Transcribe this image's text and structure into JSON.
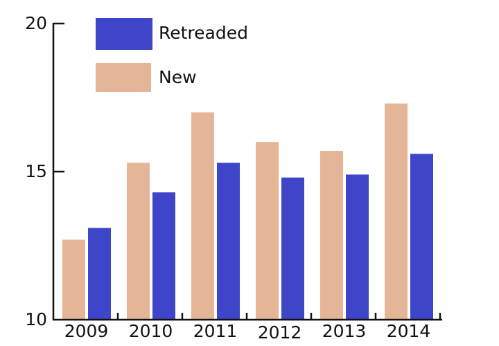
{
  "chart_data": {
    "type": "bar",
    "title": "",
    "xlabel": "",
    "ylabel": "",
    "categories": [
      "2009",
      "2010",
      "2011",
      "2012",
      "2013",
      "2014"
    ],
    "series": [
      {
        "name": "New",
        "color": "#e5b598",
        "values": [
          12.7,
          15.3,
          17.0,
          16.0,
          15.7,
          17.3
        ]
      },
      {
        "name": "Retreaded",
        "color": "#3e45c8",
        "values": [
          13.1,
          14.3,
          15.3,
          14.8,
          14.9,
          15.6
        ]
      }
    ],
    "ylim": [
      10,
      20
    ],
    "yticks": [
      10,
      15,
      20
    ],
    "grid": false,
    "legend": {
      "position": "top-left-inside",
      "entries": [
        {
          "label": "Retreaded",
          "color": "#3e45c8"
        },
        {
          "label": "New",
          "color": "#e5b598"
        }
      ]
    }
  },
  "legend": {
    "retreaded_label": "Retreaded",
    "new_label": "New"
  },
  "axis": {
    "y_ticks": [
      "20",
      "15",
      "10"
    ],
    "x_ticks": [
      "2009",
      "2010",
      "2011",
      "2012",
      "2013",
      "2014"
    ]
  }
}
